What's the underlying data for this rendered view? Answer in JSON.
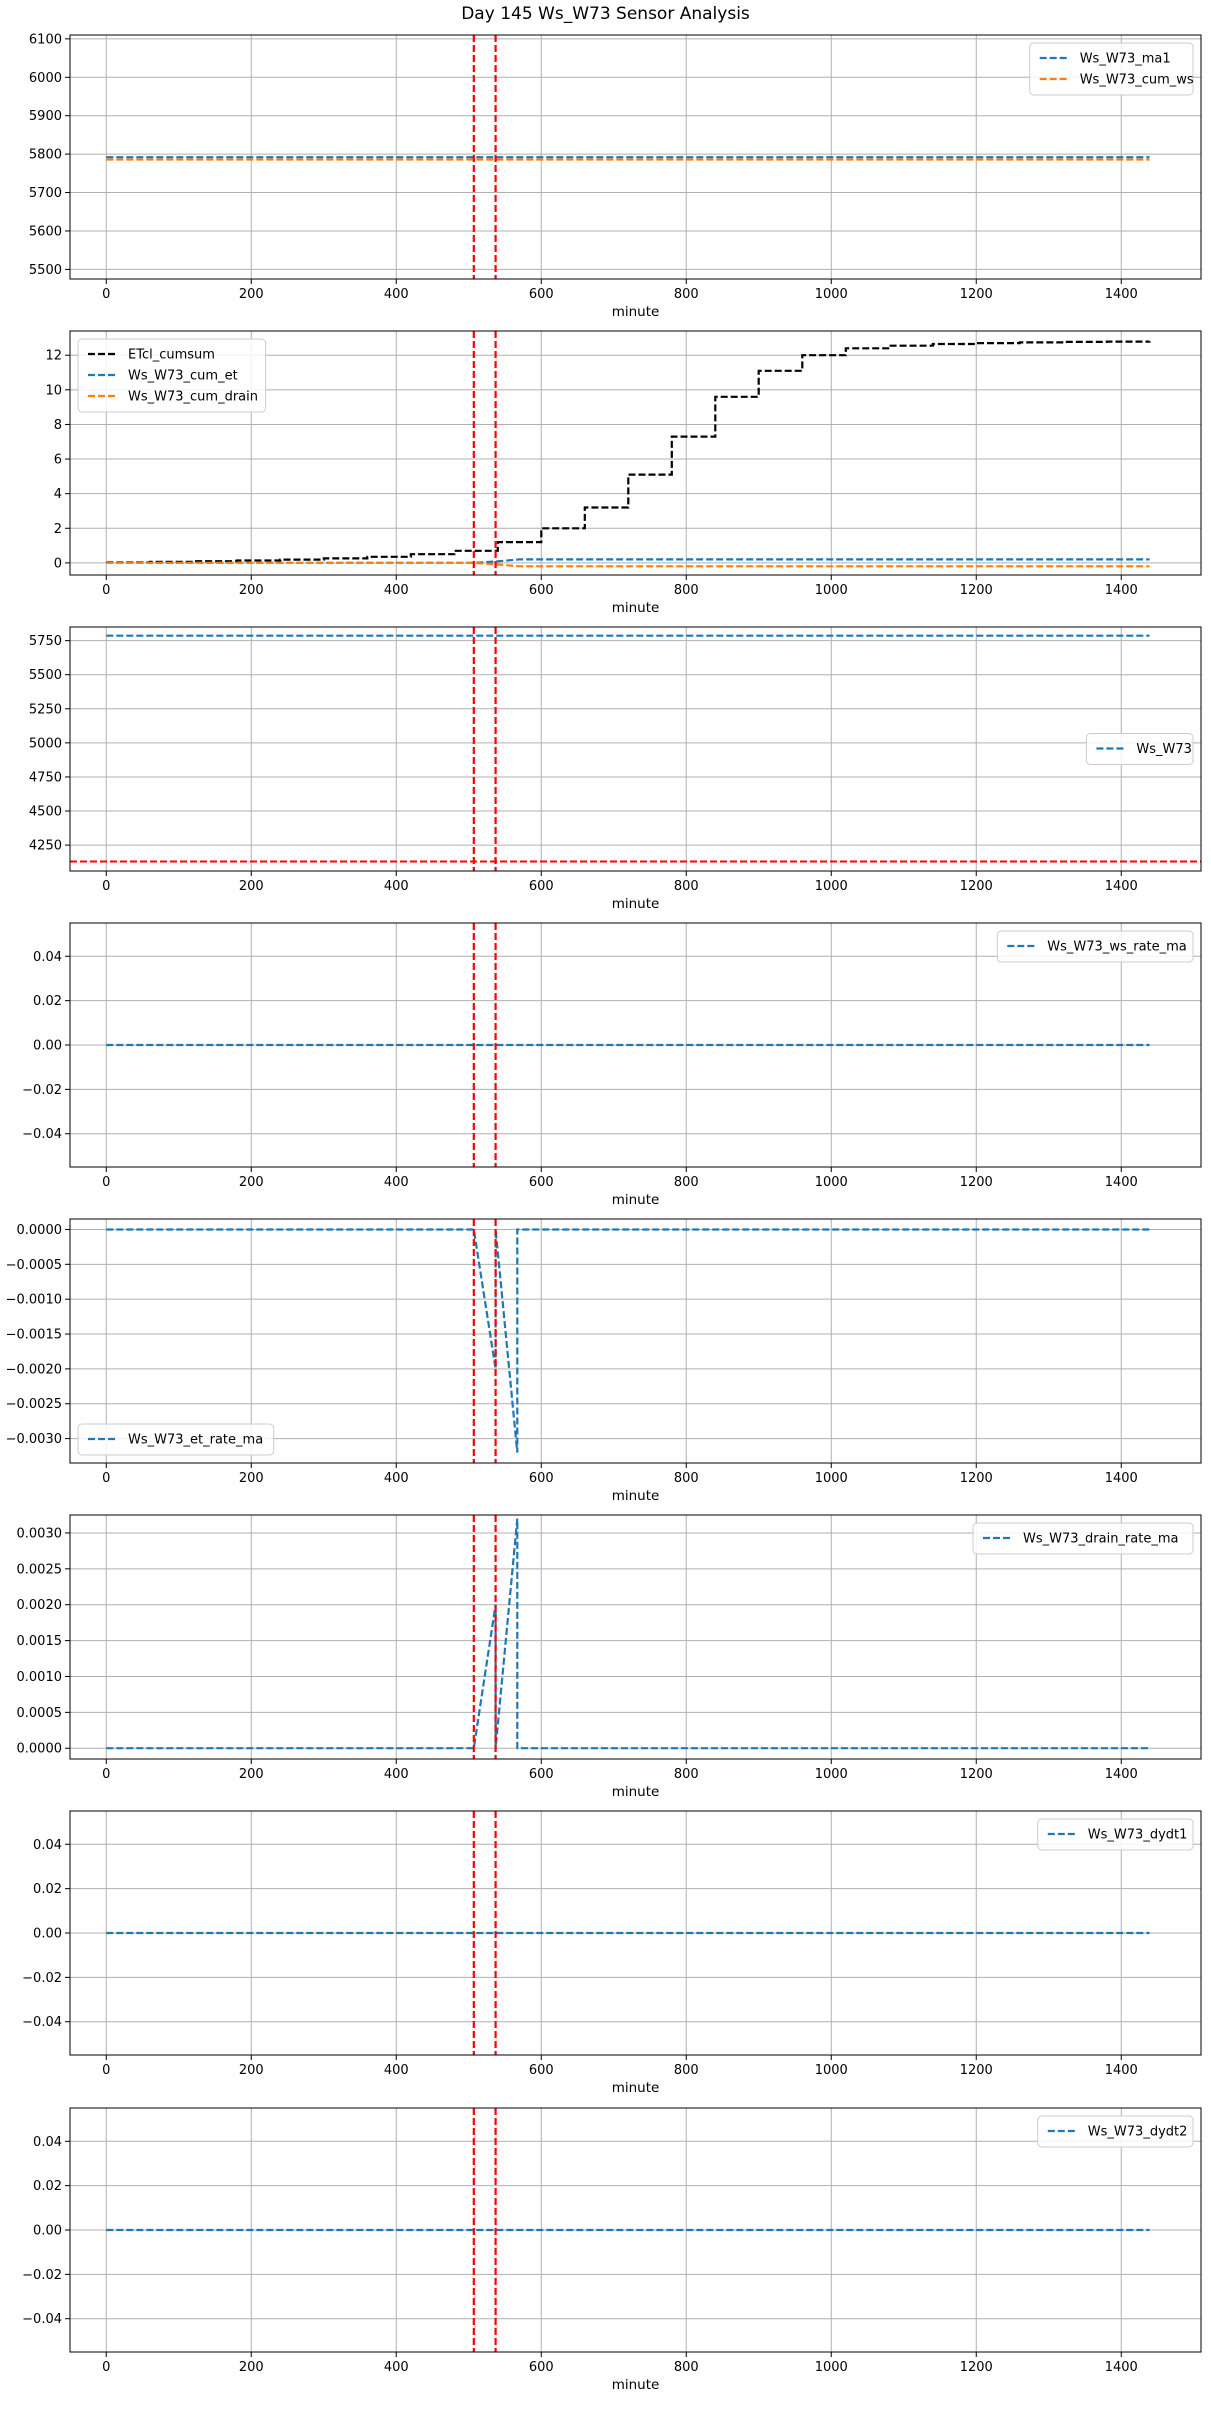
{
  "figure_title": "Day 145 Ws_W73 Sensor Analysis",
  "colors": {
    "blue": "#1f77b4",
    "orange": "#ff7f0e",
    "black": "#000000",
    "red": "#ff0000",
    "grid": "#b0b0b0"
  },
  "chart_data": [
    {
      "type": "line",
      "title": "",
      "xlabel": "minute",
      "ylabel": "",
      "xlim": [
        -50,
        1510
      ],
      "ylim": [
        5475,
        6110
      ],
      "grid": true,
      "legend": "top-right",
      "xticks": [
        0,
        200,
        400,
        600,
        800,
        1000,
        1200,
        1400
      ],
      "yticks": [
        5500,
        5600,
        5700,
        5800,
        5900,
        6000,
        6100
      ],
      "ytick_labels": [
        "5500",
        "5600",
        "5700",
        "5800",
        "5900",
        "6000",
        "6100"
      ],
      "vlines": [
        507,
        537
      ],
      "hlines": [],
      "series": [
        {
          "name": "Ws_W73_ma1",
          "color": "blue",
          "x": [
            0,
            1439
          ],
          "y": [
            5792,
            5792
          ]
        },
        {
          "name": "Ws_W73_cum_ws",
          "color": "orange",
          "x": [
            0,
            1439
          ],
          "y": [
            5786,
            5786
          ]
        }
      ]
    },
    {
      "type": "line",
      "title": "",
      "xlabel": "minute",
      "ylabel": "",
      "xlim": [
        -50,
        1510
      ],
      "ylim": [
        -0.7,
        13.4
      ],
      "grid": true,
      "legend": "top-left",
      "xticks": [
        0,
        200,
        400,
        600,
        800,
        1000,
        1200,
        1400
      ],
      "yticks": [
        0,
        2,
        4,
        6,
        8,
        10,
        12
      ],
      "ytick_labels": [
        "0",
        "2",
        "4",
        "6",
        "8",
        "10",
        "12"
      ],
      "vlines": [
        507,
        537
      ],
      "hlines": [],
      "series": [
        {
          "name": "ETcl_cumsum",
          "color": "black",
          "step": true,
          "x": [
            0,
            60,
            120,
            180,
            240,
            300,
            360,
            420,
            480,
            540,
            600,
            660,
            720,
            780,
            840,
            900,
            960,
            1020,
            1080,
            1140,
            1200,
            1260,
            1320,
            1380,
            1439
          ],
          "y": [
            0.03,
            0.06,
            0.1,
            0.14,
            0.19,
            0.26,
            0.35,
            0.5,
            0.7,
            1.2,
            2.0,
            3.2,
            5.1,
            7.3,
            9.6,
            11.1,
            12.0,
            12.4,
            12.55,
            12.65,
            12.7,
            12.74,
            12.77,
            12.79,
            12.8
          ]
        },
        {
          "name": "Ws_W73_cum_et",
          "color": "blue",
          "x": [
            0,
            507,
            537,
            570,
            1439
          ],
          "y": [
            0.0,
            0.0,
            0.08,
            0.2,
            0.2
          ]
        },
        {
          "name": "Ws_W73_cum_drain",
          "color": "orange",
          "x": [
            0,
            507,
            537,
            570,
            1439
          ],
          "y": [
            0.0,
            0.0,
            -0.08,
            -0.2,
            -0.2
          ]
        }
      ]
    },
    {
      "type": "line",
      "title": "",
      "xlabel": "minute",
      "ylabel": "",
      "xlim": [
        -50,
        1510
      ],
      "ylim": [
        4060,
        5850
      ],
      "grid": true,
      "legend": "center-right",
      "xticks": [
        0,
        200,
        400,
        600,
        800,
        1000,
        1200,
        1400
      ],
      "yticks": [
        4250,
        4500,
        4750,
        5000,
        5250,
        5500,
        5750
      ],
      "ytick_labels": [
        "4250",
        "4500",
        "4750",
        "5000",
        "5250",
        "5500",
        "5750"
      ],
      "vlines": [
        507,
        537
      ],
      "hlines": [
        4130
      ],
      "series": [
        {
          "name": "Ws_W73",
          "color": "blue",
          "x": [
            0,
            1439
          ],
          "y": [
            5786,
            5786
          ]
        }
      ]
    },
    {
      "type": "line",
      "title": "",
      "xlabel": "minute",
      "ylabel": "",
      "xlim": [
        -50,
        1510
      ],
      "ylim": [
        -0.055,
        0.055
      ],
      "grid": true,
      "legend": "top-right",
      "xticks": [
        0,
        200,
        400,
        600,
        800,
        1000,
        1200,
        1400
      ],
      "yticks": [
        -0.04,
        -0.02,
        0.0,
        0.02,
        0.04
      ],
      "ytick_labels": [
        "−0.04",
        "−0.02",
        "0.00",
        "0.02",
        "0.04"
      ],
      "vlines": [
        507,
        537
      ],
      "hlines": [],
      "series": [
        {
          "name": "Ws_W73_ws_rate_ma",
          "color": "blue",
          "x": [
            0,
            1439
          ],
          "y": [
            0,
            0
          ]
        }
      ]
    },
    {
      "type": "line",
      "title": "",
      "xlabel": "minute",
      "ylabel": "",
      "xlim": [
        -50,
        1510
      ],
      "ylim": [
        -0.00335,
        0.00015
      ],
      "grid": true,
      "legend": "bottom-left",
      "xticks": [
        0,
        200,
        400,
        600,
        800,
        1000,
        1200,
        1400
      ],
      "yticks": [
        -0.003,
        -0.0025,
        -0.002,
        -0.0015,
        -0.001,
        -0.0005,
        0.0
      ],
      "ytick_labels": [
        "−0.0030",
        "−0.0025",
        "−0.0020",
        "−0.0015",
        "−0.0010",
        "−0.0005",
        "0.0000"
      ],
      "vlines": [
        507,
        537
      ],
      "hlines": [],
      "series": [
        {
          "name": "Ws_W73_et_rate_ma",
          "color": "blue",
          "x": [
            0,
            507,
            537,
            537,
            567,
            567,
            1439
          ],
          "y": [
            0,
            0,
            -0.002,
            0,
            -0.0032,
            0,
            0
          ]
        }
      ]
    },
    {
      "type": "line",
      "title": "",
      "xlabel": "minute",
      "ylabel": "",
      "xlim": [
        -50,
        1510
      ],
      "ylim": [
        -0.00015,
        0.00325
      ],
      "grid": true,
      "legend": "top-right",
      "xticks": [
        0,
        200,
        400,
        600,
        800,
        1000,
        1200,
        1400
      ],
      "yticks": [
        0.0,
        0.0005,
        0.001,
        0.0015,
        0.002,
        0.0025,
        0.003
      ],
      "ytick_labels": [
        "0.0000",
        "0.0005",
        "0.0010",
        "0.0015",
        "0.0020",
        "0.0025",
        "0.0030"
      ],
      "vlines": [
        507,
        537
      ],
      "hlines": [],
      "series": [
        {
          "name": "Ws_W73_drain_rate_ma",
          "color": "blue",
          "x": [
            0,
            507,
            537,
            537,
            567,
            567,
            1439
          ],
          "y": [
            0,
            0,
            0.002,
            0,
            0.0032,
            0,
            0
          ]
        }
      ]
    },
    {
      "type": "line",
      "title": "",
      "xlabel": "minute",
      "ylabel": "",
      "xlim": [
        -50,
        1510
      ],
      "ylim": [
        -0.055,
        0.055
      ],
      "grid": true,
      "legend": "top-right",
      "xticks": [
        0,
        200,
        400,
        600,
        800,
        1000,
        1200,
        1400
      ],
      "yticks": [
        -0.04,
        -0.02,
        0.0,
        0.02,
        0.04
      ],
      "ytick_labels": [
        "−0.04",
        "−0.02",
        "0.00",
        "0.02",
        "0.04"
      ],
      "vlines": [
        507,
        537
      ],
      "hlines": [],
      "series": [
        {
          "name": "Ws_W73_dydt1",
          "color": "blue",
          "x": [
            0,
            1439
          ],
          "y": [
            0,
            0
          ]
        }
      ]
    },
    {
      "type": "line",
      "title": "",
      "xlabel": "minute",
      "ylabel": "",
      "xlim": [
        -50,
        1510
      ],
      "ylim": [
        -0.055,
        0.055
      ],
      "grid": true,
      "legend": "top-right",
      "xticks": [
        0,
        200,
        400,
        600,
        800,
        1000,
        1200,
        1400
      ],
      "yticks": [
        -0.04,
        -0.02,
        0.0,
        0.02,
        0.04
      ],
      "ytick_labels": [
        "−0.04",
        "−0.02",
        "0.00",
        "0.02",
        "0.04"
      ],
      "vlines": [
        507,
        537
      ],
      "hlines": [],
      "series": [
        {
          "name": "Ws_W73_dydt2",
          "color": "blue",
          "x": [
            0,
            1439
          ],
          "y": [
            0,
            0
          ]
        }
      ]
    }
  ]
}
